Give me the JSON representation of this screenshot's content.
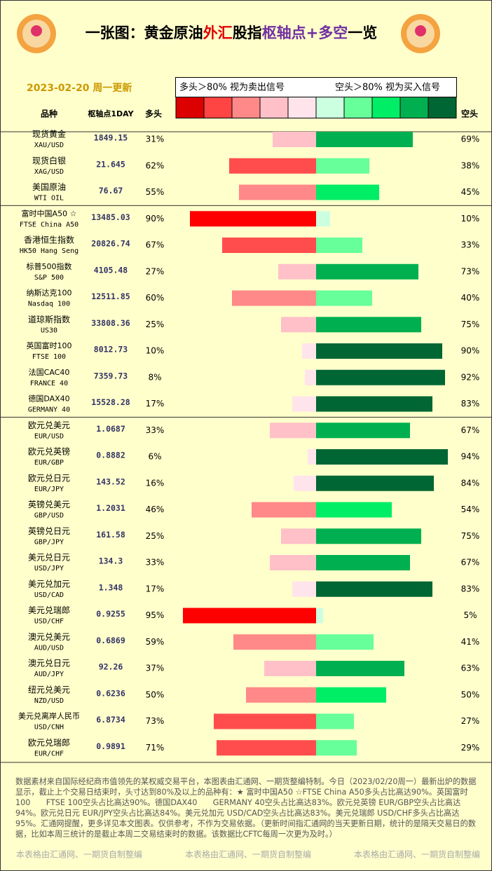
{
  "title": [
    {
      "text": "一张图：黄金原油",
      "color": "#000000"
    },
    {
      "text": "外汇",
      "color": "#e00000"
    },
    {
      "text": "股指",
      "color": "#000000"
    },
    {
      "text": "枢轴点+多空",
      "color": "#7030a0"
    },
    {
      "text": "一览",
      "color": "#000000"
    }
  ],
  "date": "2023-02-20 周一更新",
  "legend": {
    "long_note": "多头＞80% 视为卖出信号",
    "short_note": "空头＞80% 视为买入信号",
    "colors": [
      "#dd0000",
      "#ff4444",
      "#ff8888",
      "#ffc0c8",
      "#ffe4ec",
      "#ccffe0",
      "#66ff99",
      "#00ee66",
      "#00b050",
      "#006633"
    ]
  },
  "columns": {
    "name": "品种",
    "pivot": "枢轴点1DAY",
    "long": "多头",
    "short": "空头"
  },
  "groups": [
    {
      "rows": [
        {
          "name": "现货黄金",
          "code": "XAU/USD",
          "pivot": "1849.15",
          "long": 31,
          "long_label": "31%",
          "long_color": "#ffc0c8",
          "short": 69,
          "short_label": "69%",
          "short_color": "#00b050"
        },
        {
          "name": "现货白银",
          "code": "XAG/USD",
          "pivot": "21.645",
          "long": 62,
          "long_label": "62%",
          "long_color": "#ff4d4d",
          "short": 38,
          "short_label": "38%",
          "short_color": "#66ff99"
        },
        {
          "name": "美国原油",
          "code": "WTI OIL",
          "pivot": "76.67",
          "long": 55,
          "long_label": "55%",
          "long_color": "#ff8888",
          "short": 45,
          "short_label": "45%",
          "short_color": "#00ee66"
        }
      ]
    },
    {
      "rows": [
        {
          "name": "富时中国A50 ☆",
          "code": "FTSE China A50",
          "pivot": "13485.03",
          "long": 90,
          "long_label": "90%",
          "long_color": "#ff0000",
          "short": 10,
          "short_label": "10%",
          "short_color": "#ccffe0"
        },
        {
          "name": "香港恒生指数",
          "code": "HK50 Hang Seng",
          "pivot": "20826.74",
          "long": 67,
          "long_label": "67%",
          "long_color": "#ff4d4d",
          "short": 33,
          "short_label": "33%",
          "short_color": "#66ff99"
        },
        {
          "name": "标普500指数",
          "code": "S&P 500",
          "pivot": "4105.48",
          "long": 27,
          "long_label": "27%",
          "long_color": "#ffc0c8",
          "short": 73,
          "short_label": "73%",
          "short_color": "#00b050"
        },
        {
          "name": "纳斯达克100",
          "code": "Nasdaq 100",
          "pivot": "12511.85",
          "long": 60,
          "long_label": "60%",
          "long_color": "#ff8888",
          "short": 40,
          "short_label": "40%",
          "short_color": "#66ff99"
        },
        {
          "name": "道琼斯指数",
          "code": "US30",
          "pivot": "33808.36",
          "long": 25,
          "long_label": "25%",
          "long_color": "#ffc0c8",
          "short": 75,
          "short_label": "75%",
          "short_color": "#00b050"
        },
        {
          "name": "英国富时100",
          "code": "FTSE 100",
          "pivot": "8012.73",
          "long": 10,
          "long_label": "10%",
          "long_color": "#ffe4ec",
          "short": 90,
          "short_label": "90%",
          "short_color": "#006633"
        },
        {
          "name": "法国CAC40",
          "code": "FRANCE 40",
          "pivot": "7359.73",
          "long": 8,
          "long_label": "8%",
          "long_color": "#ffe4ec",
          "short": 92,
          "short_label": "92%",
          "short_color": "#006633"
        },
        {
          "name": "德国DAX40",
          "code": "GERMANY 40",
          "pivot": "15528.28",
          "long": 17,
          "long_label": "17%",
          "long_color": "#ffe4ec",
          "short": 83,
          "short_label": "83%",
          "short_color": "#006633"
        }
      ]
    },
    {
      "rows": [
        {
          "name": "欧元兑美元",
          "code": "EUR/USD",
          "pivot": "1.0687",
          "long": 33,
          "long_label": "33%",
          "long_color": "#ffc0c8",
          "short": 67,
          "short_label": "67%",
          "short_color": "#00b050"
        },
        {
          "name": "欧元兑英镑",
          "code": "EUR/GBP",
          "pivot": "0.8882",
          "long": 6,
          "long_label": "6%",
          "long_color": "#ffe4ec",
          "short": 94,
          "short_label": "94%",
          "short_color": "#006633"
        },
        {
          "name": "欧元兑日元",
          "code": "EUR/JPY",
          "pivot": "143.52",
          "long": 16,
          "long_label": "16%",
          "long_color": "#ffe4ec",
          "short": 84,
          "short_label": "84%",
          "short_color": "#006633"
        },
        {
          "name": "英镑兑美元",
          "code": "GBP/USD",
          "pivot": "1.2031",
          "long": 46,
          "long_label": "46%",
          "long_color": "#ff8888",
          "short": 54,
          "short_label": "54%",
          "short_color": "#00ee66"
        },
        {
          "name": "英镑兑日元",
          "code": "GBP/JPY",
          "pivot": "161.58",
          "long": 25,
          "long_label": "25%",
          "long_color": "#ffc0c8",
          "short": 75,
          "short_label": "75%",
          "short_color": "#00b050"
        },
        {
          "name": "美元兑日元",
          "code": "USD/JPY",
          "pivot": "134.3",
          "long": 33,
          "long_label": "33%",
          "long_color": "#ffc0c8",
          "short": 67,
          "short_label": "67%",
          "short_color": "#00b050"
        },
        {
          "name": "美元兑加元",
          "code": "USD/CAD",
          "pivot": "1.348",
          "long": 17,
          "long_label": "17%",
          "long_color": "#ffe4ec",
          "short": 83,
          "short_label": "83%",
          "short_color": "#006633"
        },
        {
          "name": "美元兑瑞郎",
          "code": "USD/CHF",
          "pivot": "0.9255",
          "long": 95,
          "long_label": "95%",
          "long_color": "#ff0000",
          "short": 5,
          "short_label": "5%",
          "short_color": "#ccffe0"
        },
        {
          "name": "澳元兑美元",
          "code": "AUD/USD",
          "pivot": "0.6869",
          "long": 59,
          "long_label": "59%",
          "long_color": "#ff8888",
          "short": 41,
          "short_label": "41%",
          "short_color": "#66ff99"
        },
        {
          "name": "澳元兑日元",
          "code": "AUD/JPY",
          "pivot": "92.26",
          "long": 37,
          "long_label": "37%",
          "long_color": "#ffc0c8",
          "short": 63,
          "short_label": "63%",
          "short_color": "#00b050"
        },
        {
          "name": "纽元兑美元",
          "code": "NZD/USD",
          "pivot": "0.6236",
          "long": 50,
          "long_label": "50%",
          "long_color": "#ff8888",
          "short": 50,
          "short_label": "50%",
          "short_color": "#00ee66"
        },
        {
          "name": "美元兑离岸人民币",
          "code": "USD/CNH",
          "pivot": "6.8734",
          "long": 73,
          "long_label": "73%",
          "long_color": "#ff4d4d",
          "short": 27,
          "short_label": "27%",
          "short_color": "#66ff99"
        },
        {
          "name": "欧元兑瑞郎",
          "code": "EUR/CHF",
          "pivot": "0.9891",
          "long": 71,
          "long_label": "71%",
          "long_color": "#ff4d4d",
          "short": 29,
          "short_label": "29%",
          "short_color": "#66ff99"
        }
      ]
    }
  ],
  "note": "数据素材来自国际经纪商市值领先的某权威交易平台，本图表由汇通网、一期货整编特制。今日（2023/02/20周一）最新出炉的数据显示，截止上个交易日结束时，头寸达到80%及以上的品种有：★ 富时中国A50 ☆FTSE China A50多头占比高达90%。英国富时100　　FTSE 100空头占比高达90%。德国DAX40　　GERMANY 40空头占比高达83%。欧元兑英镑 EUR/GBP空头占比高达94%。欧元兑日元 EUR/JPY空头占比高达84%。美元兑加元 USD/CAD空头占比高达83%。美元兑瑞郎 USD/CHF多头占比高达95%。汇通网提醒，更多详见本文图表。仅供参考，不作为交易依据。（更新时间指汇通网的当天更新日期，统计的是隔天交易日的数据，比如本周三统计的是截止本周二交易结束时的数据。该数据比CFTC每周一次更为及时。）",
  "footer": [
    "本表格由汇通网、一期货自制整编",
    "本表格由汇通网、一期货自制整编",
    "本表格由汇通网、一期货自制整编"
  ]
}
